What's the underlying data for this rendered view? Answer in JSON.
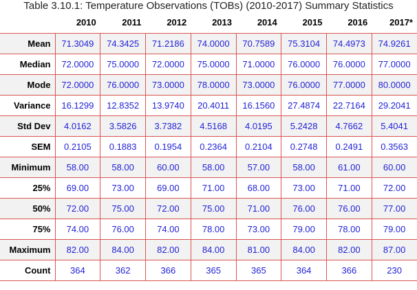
{
  "caption": "Table 3.10.1: Temperature Observations (TOBs) (2010-2017) Summary Statistics",
  "table": {
    "columns": [
      "2010",
      "2011",
      "2012",
      "2013",
      "2014",
      "2015",
      "2016",
      "2017*"
    ],
    "rows": [
      {
        "label": "Mean",
        "values": [
          "71.3049",
          "74.3425",
          "71.2186",
          "74.0000",
          "70.7589",
          "75.3104",
          "74.4973",
          "74.9261"
        ]
      },
      {
        "label": "Median",
        "values": [
          "72.0000",
          "75.0000",
          "72.0000",
          "75.0000",
          "71.0000",
          "76.0000",
          "76.0000",
          "77.0000"
        ]
      },
      {
        "label": "Mode",
        "values": [
          "72.0000",
          "76.0000",
          "73.0000",
          "78.0000",
          "73.0000",
          "76.0000",
          "77.0000",
          "80.0000"
        ]
      },
      {
        "label": "Variance",
        "values": [
          "16.1299",
          "12.8352",
          "13.9740",
          "20.4011",
          "16.1560",
          "27.4874",
          "22.7164",
          "29.2041"
        ]
      },
      {
        "label": "Std Dev",
        "values": [
          "4.0162",
          "3.5826",
          "3.7382",
          "4.5168",
          "4.0195",
          "5.2428",
          "4.7662",
          "5.4041"
        ]
      },
      {
        "label": "SEM",
        "values": [
          "0.2105",
          "0.1883",
          "0.1954",
          "0.2364",
          "0.2104",
          "0.2748",
          "0.2491",
          "0.3563"
        ]
      },
      {
        "label": "Minimum",
        "values": [
          "58.00",
          "58.00",
          "60.00",
          "58.00",
          "57.00",
          "58.00",
          "61.00",
          "60.00"
        ]
      },
      {
        "label": "25%",
        "values": [
          "69.00",
          "73.00",
          "69.00",
          "71.00",
          "68.00",
          "73.00",
          "71.00",
          "72.00"
        ]
      },
      {
        "label": "50%",
        "values": [
          "72.00",
          "75.00",
          "72.00",
          "75.00",
          "71.00",
          "76.00",
          "76.00",
          "77.00"
        ]
      },
      {
        "label": "75%",
        "values": [
          "74.00",
          "76.00",
          "74.00",
          "78.00",
          "73.00",
          "79.00",
          "78.00",
          "79.00"
        ]
      },
      {
        "label": "Maximum",
        "values": [
          "82.00",
          "84.00",
          "82.00",
          "84.00",
          "81.00",
          "84.00",
          "82.00",
          "87.00"
        ]
      },
      {
        "label": "Count",
        "values": [
          "364",
          "362",
          "366",
          "365",
          "365",
          "364",
          "366",
          "230"
        ]
      }
    ]
  },
  "colors": {
    "value_text": "#1f1fd6",
    "grid_border": "#d9534f",
    "stripe": "#f2f2f2"
  }
}
